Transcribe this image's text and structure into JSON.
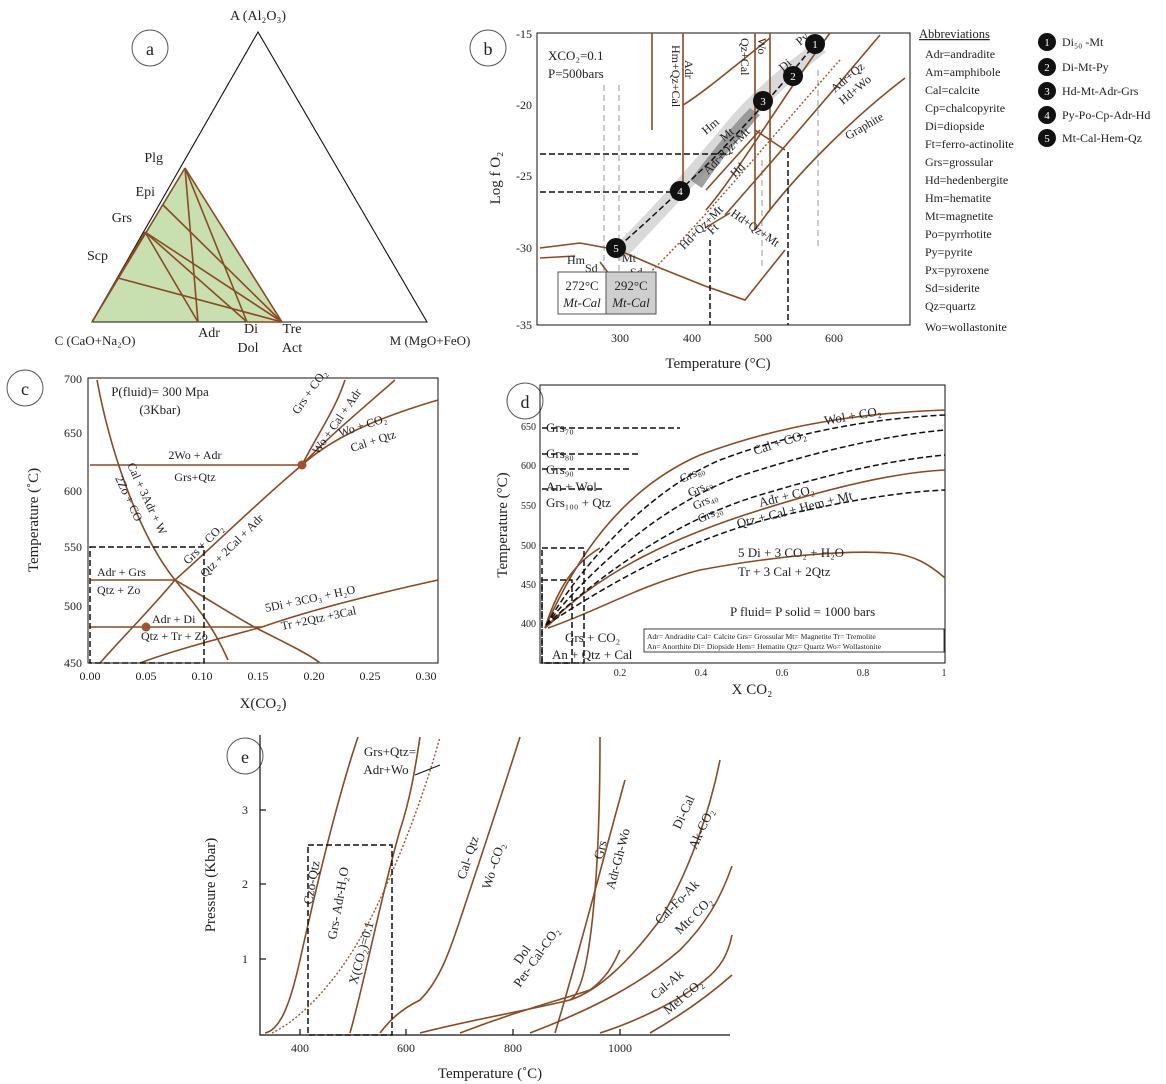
{
  "panels": {
    "a": {
      "label": "a",
      "apex_top": "A (Al₂O₃)",
      "apex_left": "C (CaO+Na₂O)",
      "apex_right": "M (MgO+FeO)",
      "minerals_left": [
        "Plg",
        "Epi",
        "Grs",
        "Scp"
      ],
      "minerals_bottom": [
        "Adr",
        "Di",
        "Dol",
        "Tre",
        "Act"
      ],
      "fill_color": "#c8dfb0"
    },
    "b": {
      "label": "b",
      "conditions": [
        "XCO₂=0.1",
        "P=500bars"
      ],
      "ylabel": "Log f O₂",
      "xlabel": "Temperature (°C)",
      "yticks": [
        "-15",
        "-20",
        "-25",
        "-30",
        "-35"
      ],
      "xticks": [
        "300",
        "400",
        "500",
        "600"
      ],
      "field_labels": [
        "Hm+Qz+Cal",
        "Adr",
        "Qz+Cal",
        "Wo",
        "Hm",
        "Mt",
        "Adr+Qz",
        "Hd+Wo",
        "Graphite",
        "Adr+Qz+Mt",
        "Hd",
        "Hd+Qz+Mt",
        "Ft",
        "Hd+Qz+Mt",
        "Hm",
        "Sd",
        "Mt",
        "Sd",
        "Di",
        "Py"
      ],
      "temp_boxes": [
        {
          "temp": "272°C",
          "label": "Mt-Cal"
        },
        {
          "temp": "292°C",
          "label": "Mt-Cal"
        }
      ],
      "points": [
        "1",
        "2",
        "3",
        "4",
        "5"
      ]
    },
    "abbreviations": {
      "title": "Abbreviations",
      "items": [
        "Adr=andradite",
        "Am=amphibole",
        "Cal=calcite",
        "Cp=chalcopyrite",
        "Di=diopside",
        "Ft=ferro-actinolite",
        "Grs=grossular",
        "Hd=hedenbergite",
        "Hm=hematite",
        "Mt=magnetite",
        "Po=pyrrhotite",
        "Py=pyrite",
        "Px=pyroxene",
        "Sd=siderite",
        "Qz=quartz",
        "Wo=wollastonite"
      ]
    },
    "legend": [
      {
        "num": "1",
        "text": "Di₅₀ -Mt"
      },
      {
        "num": "2",
        "text": "Di-Mt-Py"
      },
      {
        "num": "3",
        "text": "Hd-Mt-Adr-Grs"
      },
      {
        "num": "4",
        "text": "Py-Po-Cp-Adr-Hd"
      },
      {
        "num": "5",
        "text": "Mt-Cal-Hem-Qz"
      }
    ],
    "c": {
      "label": "c",
      "conditions": [
        "P(fluid)= 300 Mpa",
        "(3Kbar)"
      ],
      "ylabel": "Temperature (˚C)",
      "xlabel": "X(CO₂)",
      "yticks": [
        "700",
        "650",
        "600",
        "550",
        "500",
        "450"
      ],
      "xticks": [
        "0.00",
        "0.05",
        "0.10",
        "0.15",
        "0.20",
        "0.25",
        "0.30"
      ],
      "reactions": [
        "Grs + CO₂",
        "Wo + Cal + Adr",
        "Wo + CO₂",
        "Cal + Qtz",
        "2Wo + Adr",
        "Grs+Qtz",
        "Cal + 3Adr + W",
        "2Zo + CO",
        "Grs + CO₂",
        "Qtz + 2Cal + Adr",
        "Adr + Grs",
        "Qtz + Zo",
        "Adr + Di",
        "Qtz + Tr + Zo",
        "5Di + 3CO₃ + H₂O",
        "Tr +2Qtz +3Cal"
      ]
    },
    "d": {
      "label": "d",
      "ylabel": "Temperature (°C)",
      "xlabel": "X CO₂",
      "yticks": [
        "650",
        "600",
        "550",
        "500",
        "450",
        "400"
      ],
      "xticks": [
        "0.2",
        "0.4",
        "0.6",
        "0.8",
        "1"
      ],
      "grs_labels": [
        "Grs₇₀",
        "Grs₈₀",
        "Grs₉₀",
        "An + Wol",
        "Grs₁₀₀ + Qtz"
      ],
      "curve_labels": [
        "Wol + CO₂",
        "Cal + CO₂",
        "Grs₈₀",
        "Grs₆₀",
        "Grs₄₀",
        "Grs₂₀",
        "Adr + CO₂",
        "Qtz + Cal + Hem + Mt",
        "5 Di + 3 CO₂ + H₂O",
        "Tr + 3 Cal + 2Qtz",
        "Grs + CO₂",
        "An + Qtz + Cal"
      ],
      "condition": "P fluid= P solid = 1000 bars",
      "key": [
        "Adr= Andradite Cal= Calcite Grs= Grossular Mt= Magnetite Tr= Tremolite",
        "An= Anorthite Di= Diopside Hem= Hematite Qtz= Quartz Wo= Wollastonite"
      ]
    },
    "e": {
      "label": "e",
      "ylabel": "Pressure (Kbar)",
      "xlabel": "Temperature (˚C)",
      "yticks": [
        "3",
        "2",
        "1"
      ],
      "xticks": [
        "400",
        "600",
        "800",
        "1000"
      ],
      "curve_labels": [
        "Grs+Qtz=",
        "Adr+Wo",
        "Czo-Qtz",
        "Grs- Adr-H₂O",
        "X(CO₂)=0.1",
        "Cal- Qtz",
        "Wo -CO₂",
        "Dol",
        "Per- Cal-CO₂",
        "Grs",
        "Adr-Gh-Wo",
        "Di-Cal",
        "Ak-CO₂",
        "Cal-Fo-Ak",
        "Mtc CO₂",
        "Cal-Ak",
        "Mel CO₂"
      ]
    }
  },
  "colors": {
    "curve": "#8a4a22",
    "dashed": "#111111",
    "grey": "#aaaaaa"
  }
}
